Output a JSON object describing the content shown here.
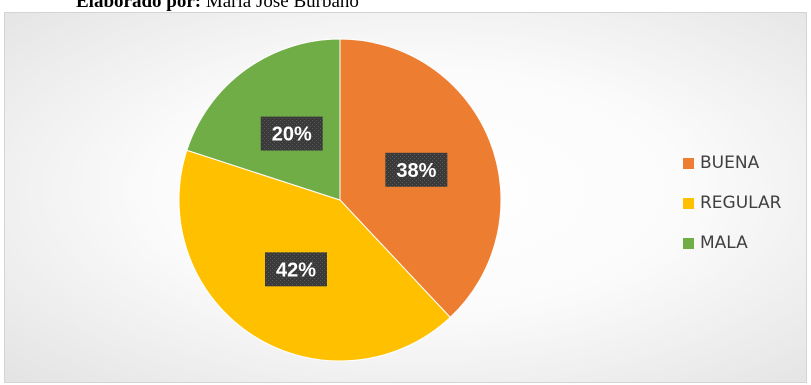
{
  "caption": {
    "label": "Elaborado por:",
    "author": "María José Burbano"
  },
  "chart_data": {
    "type": "pie",
    "title": "",
    "categories": [
      "BUENA",
      "REGULAR",
      "MALA"
    ],
    "values": [
      38,
      42,
      20
    ],
    "data_labels": [
      "38%",
      "42%",
      "20%"
    ],
    "colors": [
      "#ED7D31",
      "#FFC000",
      "#70AD47"
    ],
    "start_angle_deg": 0,
    "direction": "clockwise",
    "legend": "right",
    "label_style": "white bold text on dark patterned box"
  }
}
